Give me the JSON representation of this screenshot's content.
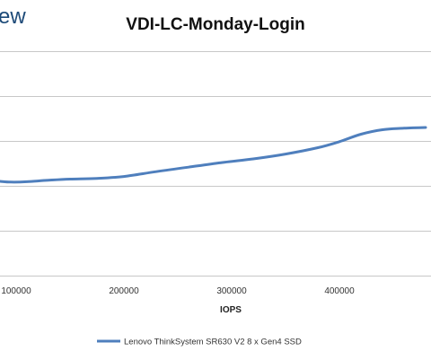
{
  "logo_text": "ew",
  "chart_data": {
    "type": "line",
    "title": "VDI-LC-Monday-Login",
    "xlabel": "IOPS",
    "ylabel": "",
    "xlim": [
      85000,
      485000
    ],
    "ylim": [
      0,
      6
    ],
    "x_ticks": [
      100000,
      200000,
      300000,
      400000
    ],
    "x_tick_labels": [
      "100000",
      "200000",
      "300000",
      "400000"
    ],
    "grid": true,
    "legend": "bottom",
    "series": [
      {
        "name": "Lenovo ThinkSystem SR630 V2 8 x Gen4 SSD",
        "color": "#4f7fbd",
        "x": [
          85000,
          95000,
          110000,
          130000,
          150000,
          175000,
          200000,
          230000,
          260000,
          290000,
          320000,
          350000,
          380000,
          400000,
          420000,
          440000,
          460000,
          480000
        ],
        "y": [
          2.52,
          2.5,
          2.51,
          2.55,
          2.58,
          2.6,
          2.65,
          2.78,
          2.9,
          3.02,
          3.12,
          3.25,
          3.42,
          3.58,
          3.78,
          3.9,
          3.94,
          3.96
        ]
      }
    ]
  }
}
